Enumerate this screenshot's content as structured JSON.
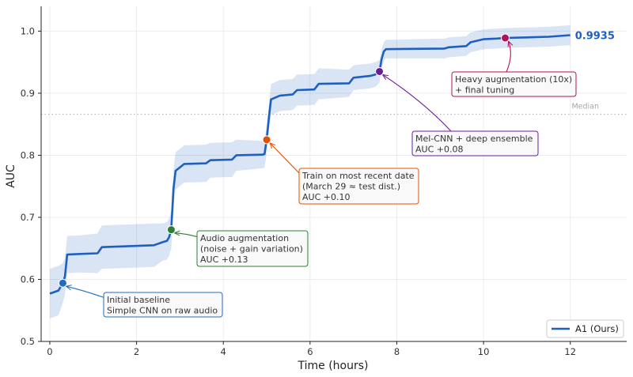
{
  "chart_data": {
    "type": "line",
    "xlabel": "Time (hours)",
    "ylabel": "AUC",
    "xlim": [
      -0.2,
      13.3
    ],
    "ylim": [
      0.5,
      1.04
    ],
    "xticks": [
      "0",
      "2",
      "4",
      "6",
      "8",
      "10",
      "12"
    ],
    "yticks": [
      "0.5",
      "0.6",
      "0.7",
      "0.8",
      "0.9",
      "1.0"
    ],
    "grid": true,
    "legend_position": "bottom-right",
    "reference_line": {
      "label": "Median",
      "y": 0.866
    },
    "final_value_label": "0.9935",
    "series": [
      {
        "name": "A1 (Ours)",
        "color": "#1f5fbf",
        "x": [
          0,
          0.2,
          0.3,
          0.35,
          0.4,
          0.7,
          1.1,
          1.2,
          2.4,
          2.6,
          2.7,
          2.75,
          2.8,
          2.85,
          2.9,
          3.1,
          3.6,
          3.7,
          4.2,
          4.3,
          4.9,
          4.95,
          5.0,
          5.05,
          5.1,
          5.3,
          5.6,
          5.7,
          6.1,
          6.2,
          6.9,
          7.0,
          7.4,
          7.5,
          7.6,
          7.65,
          7.7,
          7.75,
          9.1,
          9.2,
          9.6,
          9.7,
          10.0,
          10.3,
          10.5,
          11.0,
          11.5,
          12.0
        ],
        "y": [
          0.577,
          0.582,
          0.594,
          0.605,
          0.64,
          0.641,
          0.642,
          0.652,
          0.655,
          0.66,
          0.662,
          0.668,
          0.68,
          0.745,
          0.775,
          0.786,
          0.787,
          0.792,
          0.793,
          0.8,
          0.801,
          0.802,
          0.825,
          0.86,
          0.89,
          0.896,
          0.898,
          0.905,
          0.906,
          0.915,
          0.916,
          0.925,
          0.928,
          0.93,
          0.935,
          0.955,
          0.967,
          0.971,
          0.972,
          0.974,
          0.976,
          0.982,
          0.987,
          0.988,
          0.989,
          0.99,
          0.991,
          0.9935
        ],
        "band_halfwidth": [
          0.04,
          0.04,
          0.032,
          0.03,
          0.03,
          0.03,
          0.032,
          0.035,
          0.035,
          0.03,
          0.03,
          0.03,
          0.03,
          0.03,
          0.03,
          0.03,
          0.03,
          0.028,
          0.028,
          0.025,
          0.022,
          0.022,
          0.022,
          0.022,
          0.025,
          0.025,
          0.025,
          0.025,
          0.025,
          0.025,
          0.022,
          0.02,
          0.02,
          0.02,
          0.018,
          0.016,
          0.015,
          0.015,
          0.016,
          0.016,
          0.016,
          0.016,
          0.016,
          0.016,
          0.016,
          0.016,
          0.016,
          0.016
        ]
      }
    ],
    "milestones": [
      {
        "x": 0.3,
        "y": 0.594,
        "color": "#1f6fbf",
        "label_lines": [
          "Initial baseline",
          "Simple CNN on raw audio"
        ]
      },
      {
        "x": 2.8,
        "y": 0.68,
        "color": "#2e7d32",
        "label_lines": [
          "Audio augmentation",
          "(noise + gain variation)",
          "AUC +0.13"
        ]
      },
      {
        "x": 5.0,
        "y": 0.825,
        "color": "#e65100",
        "label_lines": [
          "Train on most recent date",
          "(March 29 ≈ test dist.)",
          "AUC +0.10"
        ]
      },
      {
        "x": 7.6,
        "y": 0.935,
        "color": "#6a1b9a",
        "label_lines": [
          "Mel-CNN + deep ensemble",
          "AUC +0.08"
        ]
      },
      {
        "x": 10.5,
        "y": 0.989,
        "color": "#ad1457",
        "label_lines": [
          "Heavy augmentation (10x)",
          "+ final tuning"
        ]
      }
    ]
  }
}
